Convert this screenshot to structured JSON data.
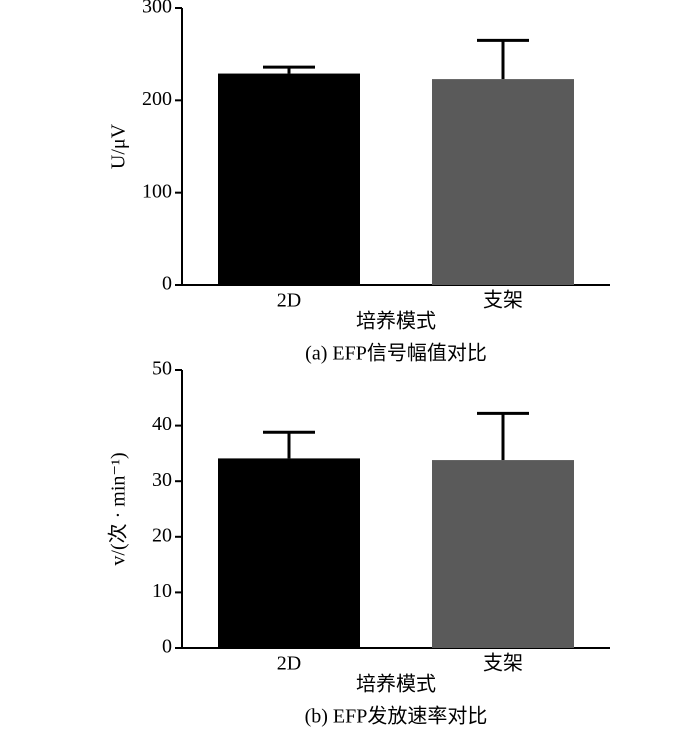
{
  "chart_data": [
    {
      "type": "bar",
      "title": "(a) EFP信号幅值对比",
      "xlabel": "培养模式",
      "ylabel": "U/μV",
      "categories": [
        "2D",
        "支架"
      ],
      "values": [
        229,
        223
      ],
      "errors": [
        7,
        42
      ],
      "colors": [
        "#000000",
        "#5a5a5a"
      ],
      "ylim": [
        0,
        300
      ],
      "yticks": [
        0,
        100,
        200,
        300
      ]
    },
    {
      "type": "bar",
      "title": "(b) EFP发放速率对比",
      "xlabel": "培养模式",
      "ylabel": "v/(次 · min⁻¹)",
      "categories": [
        "2D",
        "支架"
      ],
      "values": [
        34.1,
        33.8
      ],
      "errors": [
        4.7,
        8.4
      ],
      "colors": [
        "#000000",
        "#5a5a5a"
      ],
      "ylim": [
        0,
        50
      ],
      "yticks": [
        0,
        10,
        20,
        30,
        40,
        50
      ]
    }
  ]
}
